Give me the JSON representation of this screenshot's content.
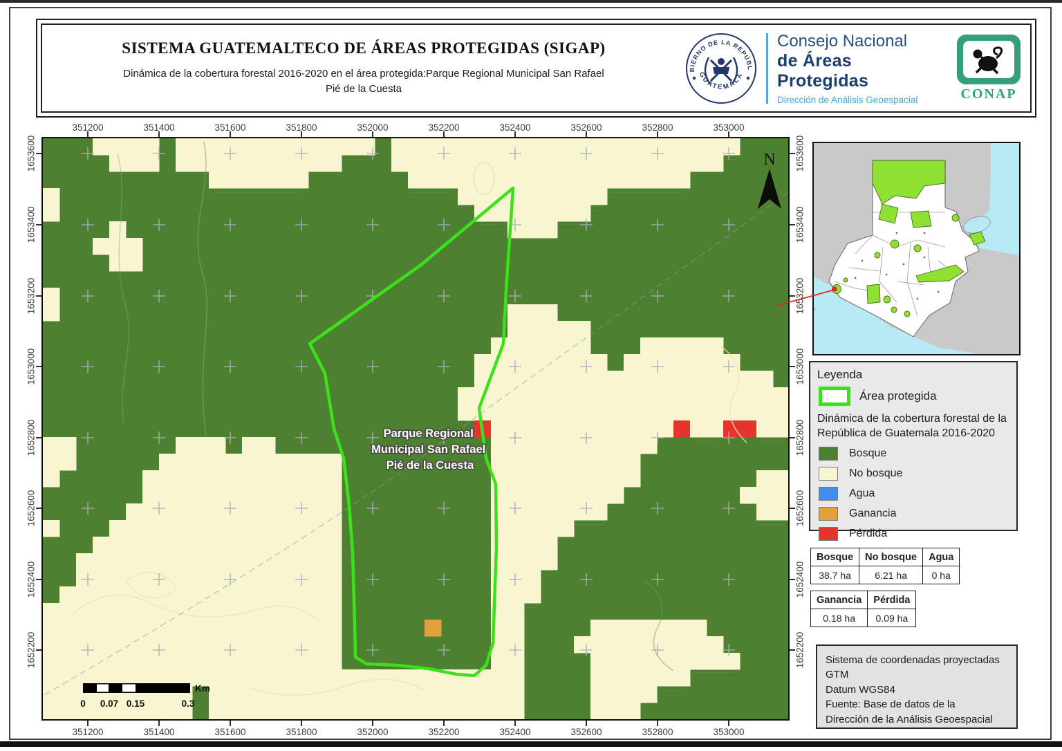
{
  "header": {
    "title": "SISTEMA GUATEMALTECO DE ÁREAS PROTEGIDAS  (SIGAP)",
    "subtitle": "Dinámica de la cobertura forestal 2016-2020 en el área protegida:Parque Regional Municipal San Rafael Pié de la Cuesta",
    "seal": {
      "top_text": "GOBIERNO DE LA REPÚBLICA",
      "bottom_text": "GUATEMALA"
    },
    "org": {
      "line1": "Consejo Nacional",
      "line2": "de Áreas Protegidas",
      "line3": "Dirección de Análisis Geoespacial"
    },
    "conap_label": "CONAP"
  },
  "map": {
    "north_label": "N",
    "park_label": {
      "lines": [
        "Parque Regional",
        "Municipal San Rafael",
        "Pié de la Cuesta"
      ]
    },
    "axis": {
      "x_labels": [
        "351200",
        "351400",
        "351600",
        "351800",
        "352000",
        "352200",
        "352400",
        "352600",
        "352800",
        "353000"
      ],
      "y_labels": [
        "1653600",
        "1653400",
        "1653200",
        "1653000",
        "1652800",
        "1652600",
        "1652400",
        "1652200"
      ]
    },
    "scalebar": {
      "unit": "Km",
      "labels": [
        "0",
        "0.07",
        "0.15",
        "0.3"
      ]
    },
    "colors": {
      "bosque": "#4D8131",
      "no_bosque": "#F7F6D0",
      "agua": "#3E8EF0",
      "ganancia": "#E2A23B",
      "perdida": "#E5342B",
      "area_outline": "#3CE11C"
    },
    "raster": [
      "GGGCCCCGCCCCCCCCCCCCGCCCCCCCCCCCCCCCCCCCCCGGG",
      "GGGGCCCGCCCCCCCCCCGGGCCCCCCCCCCCCCCCCCCCCGGGG",
      "GGGGGGGGGGCCCCCCGGGGGGCCCCCCCCCCCCCCCCCGGGGGG",
      "CGGGGGGGGGGGGGGGGGGGGGGGGCCCCCCCCCGGGGGGGGGGG",
      "CGGGGGGGGGGGGGGGGGGGGGGGGGCCCCCCCGGGGGGGGGGGG",
      "GGGGCGGGGGGGGGGGGGGGGGGGGGGGCCCGGGGGGGGGGGGGG",
      "GGGCCCGGGGGGGGGGGGGGGGGGGGGGGGGGGGGGGGGGGGGGG",
      "GGGGCCGGGGGGGGGGGGGGGGGGGGGGGGGGGGGGGGGGGGGGG",
      "GGGGGGGGGGGGGGGGGGGGGGGGGGGGGGGGGGGGGGGGGGGGG",
      "CGGGGGGGGGGGGGGGGGGGGGGGGGGGGGGGGGGGGGGGGGGGG",
      "CGGGGGGGGGGGGGGGGGGGGGGGGGGGCCCGGGGGGGGGGGGGG",
      "GGGGGGGGGGGGGGGGGGGGGGGGGGGGCCCCCGGGGGGGGGGGG",
      "GGGGGGGGGGGGGGGGGGGGGGGGGGGCCCCCCGGGCCCCCGGGG",
      "GGGGGGGGGGGGGGGGGGGGGGGGGGCCCCCCCCGCCCCCCCGGG",
      "GGGGGGGGGGGGGGGGGGGGGGGGGGCCCCCCCCCCCCCCCCCCG",
      "GGGGGGGGGGGGGGGGGGGGGGGGGCCCCCCCCCCCCCCCCCCCC",
      "GGGGGGGGGGGGGGGGGGGGGGGGGCCCCCCCCCCCCCCCCCCCC",
      "GGGGGGGGGGGGGGGGGGGGGGGGGGRCCCCCCCCCCCRCCRRCC",
      "CCGGGGGGCCCGCCGGGGGGGGGGGGGCCCCCCCCCCGGGGGGGG",
      "CCGGGGGCCCCCCCCCCCGGGGGGGGGCCCCCCCCCGGGGGGGGG",
      "CGGGGGCCCCCCCCCCCCGGGGGGGGGCCCCCCCCCGGGGGGGCC",
      "GGGGGGCCCCCCCCCCCCGGGGGGGGGCCCCCCCCGGGGGGGCCC",
      "GGGGGCCCCCCCCCCCCCGGGGGGGGGCCCCCCCGGGGGGGGGCC",
      "CGGGCCCCCCCCCCCCCCGGGGGGGGGCCCCCGGGGGGGGGGGGG",
      "GGGCCCCCCCCCCCCCCCGGGGGGGGGCCCCGGGGGGGGGGGGGG",
      "GGCCCCCCCCCCCCCCCCGGGGGGGGGCCCCGGGGGGGGGGGGGG",
      "GGCCCCCCCCCCCCCCCCGGGGGGGGGCCCGGGGGGGGGGGGGGG",
      "GCCCCCCCCCCCCCCCCCGGGGGGGGGCCCGGGGGGGGGGGGGGG",
      "CCCCCCCCCCCCCCCCCCGGGGGGGGGCCGGGGGGGGGGGGGGGG",
      "CCCCCCCCCCCCCCCCCCGGGGGOGGGCCGGGGCCCCCCCGGGGG",
      "CCCCCCCCCCCCCCCCCCGGGGGGGGGCCGGGCCCCCCCCCGGGG",
      "CCCCCCCCCCCCCCCCCCGGGGGGGGGCCGGGGCCCCCCCCCGGG",
      "CCCCCCCCCCCCCCCCCCCCCCCCCCCCCGGGGCCCCCCGGGGGG",
      "CCCCCCCCCGCCCCCCCCCCCCCCCCCCCGGGGCCCCGGGGGGGG",
      "CCCCCCCCCGCCCCCCCCCCCCCCCCCCCGGGGCCCGGGGGGGGG"
    ]
  },
  "legend": {
    "title": "Leyenda",
    "area_protegida_label": "Área protegida",
    "subtitle": "Dinámica de la cobertura forestal de la República de Guatemala 2016-2020",
    "items": [
      {
        "label": "Bosque",
        "color": "#4D8131"
      },
      {
        "label": "No bosque",
        "color": "#F7F6D0"
      },
      {
        "label": "Agua",
        "color": "#3E8EF0"
      },
      {
        "label": "Ganancia",
        "color": "#E2A23B"
      },
      {
        "label": "Pérdida",
        "color": "#E5342B"
      }
    ]
  },
  "tables": {
    "coverage": {
      "headers": [
        "Bosque",
        "No bosque",
        "Agua"
      ],
      "values": [
        "38.7 ha",
        "6.21 ha",
        "0 ha"
      ]
    },
    "change": {
      "headers": [
        "Ganancia",
        "Pérdida"
      ],
      "values": [
        "0.18 ha",
        "0.09 ha"
      ]
    }
  },
  "info_box": {
    "lines": [
      "Sistema de coordenadas proyectadas",
      "GTM",
      "Datum WGS84",
      "Fuente: Base de datos de la",
      "Dirección de la Análisis Geoespacial"
    ]
  }
}
